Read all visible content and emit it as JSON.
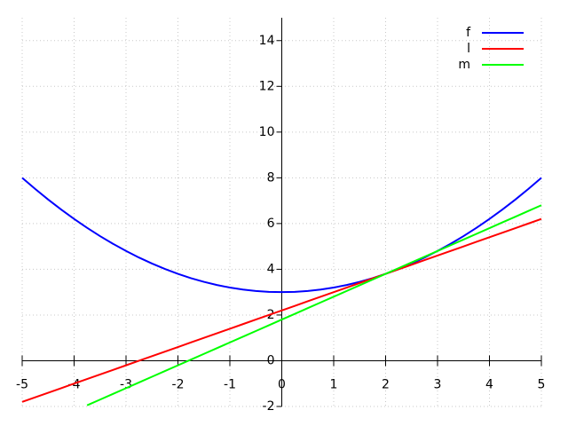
{
  "chart_data": {
    "type": "line",
    "x": [
      -5,
      -4.75,
      -4.5,
      -4.25,
      -4,
      -3.75,
      -3.5,
      -3.25,
      -3,
      -2.75,
      -2.5,
      -2.25,
      -2,
      -1.75,
      -1.5,
      -1.25,
      -1,
      -0.75,
      -0.5,
      -0.25,
      0,
      0.25,
      0.5,
      0.75,
      1,
      1.25,
      1.5,
      1.75,
      2,
      2.25,
      2.5,
      2.75,
      3,
      3.25,
      3.5,
      3.75,
      4,
      4.25,
      4.5,
      4.75,
      5
    ],
    "series": [
      {
        "name": "f",
        "color": "#0000ff",
        "values": [
          8,
          7.5125,
          7.05,
          6.6125,
          6.2,
          5.8125,
          5.45,
          5.1125,
          4.8,
          4.5125,
          4.25,
          4.0125,
          3.8,
          3.6125,
          3.45,
          3.3125,
          3.2,
          3.1125,
          3.05,
          3.0125,
          3,
          3.0125,
          3.05,
          3.1125,
          3.2,
          3.3125,
          3.45,
          3.6125,
          3.8,
          4.0125,
          4.25,
          4.5125,
          4.8,
          5.1125,
          5.45,
          5.8125,
          6.2,
          6.6125,
          7.05,
          7.5125,
          8
        ]
      },
      {
        "name": "l",
        "color": "#ff0000",
        "values": [
          -1.8,
          -1.6,
          -1.4,
          -1.2,
          -1.0,
          -0.8,
          -0.6,
          -0.4,
          -0.2,
          0,
          0.2,
          0.4,
          0.6,
          0.8,
          1.0,
          1.2,
          1.4,
          1.6,
          1.8,
          2.0,
          2.2,
          2.4,
          2.6,
          2.8,
          3.0,
          3.2,
          3.4,
          3.6,
          3.8,
          4.0,
          4.2,
          4.4,
          4.6,
          4.8,
          5.0,
          5.2,
          5.4,
          5.6,
          5.8,
          6.0,
          6.2
        ]
      },
      {
        "name": "m",
        "color": "#00ff00",
        "values": [
          null,
          null,
          null,
          null,
          null,
          -1.95,
          -1.7,
          -1.45,
          -1.2,
          -0.95,
          -0.7,
          -0.45,
          -0.2,
          0.05,
          0.3,
          0.55,
          0.8,
          1.05,
          1.3,
          1.55,
          1.8,
          2.05,
          2.3,
          2.55,
          2.8,
          3.05,
          3.3,
          3.55,
          3.8,
          4.05,
          4.3,
          4.55,
          4.8,
          5.05,
          5.3,
          5.55,
          5.8,
          6.05,
          6.3,
          6.55,
          6.8
        ]
      }
    ],
    "xlim": [
      -5,
      5
    ],
    "ylim": [
      -2,
      15
    ],
    "xticks": [
      -5,
      -4,
      -3,
      -2,
      -1,
      0,
      1,
      2,
      3,
      4,
      5
    ],
    "yticks": [
      -2,
      0,
      2,
      4,
      6,
      8,
      10,
      12,
      14
    ],
    "grid": true,
    "legend": "top-right"
  }
}
